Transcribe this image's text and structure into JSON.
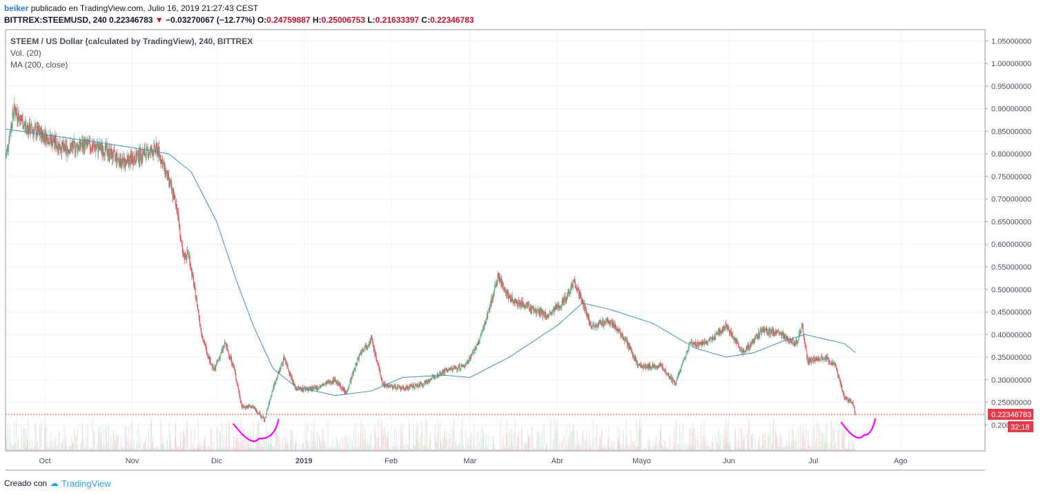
{
  "header": {
    "user": "beiker",
    "published_text": "publicado en TradingView.com, Julio 16, 2019 21:27:43 CEST",
    "symbol": "BITTREX:STEEMUSD, 240",
    "last": "0.22346783",
    "change": "−0.03270067 (−12.77%)",
    "open_label": "O:",
    "open": "0.24759887",
    "high_label": "H:",
    "high": "0.25006753",
    "low_label": "L:",
    "low": "0.21633397",
    "close_label": "C:",
    "close": "0.22346783",
    "down_icon": "triangle-down-icon"
  },
  "legend": {
    "title": "STEEM / US Dollar (calculated by TradingView), 240, BITTREX",
    "volume": "Vol. (20)",
    "ma": "MA (200, close)"
  },
  "footer": {
    "created_with": "Creado con",
    "brand": "TradingView",
    "logo_icon": "tradingview-logo-icon"
  },
  "colors": {
    "up": "#53b987",
    "down": "#eb4d5c",
    "ma": "#3d8eb9",
    "annotation": "#ff00ff",
    "last_price": "#e03c4a",
    "grid": "#eef1f6",
    "axis_text": "#4a4e59"
  },
  "chart_data": {
    "type": "candlestick",
    "symbol": "STEEMUSD",
    "exchange": "BITTREX",
    "interval": "240",
    "x_ticks": [
      "Oct",
      "Nov",
      "Dic",
      "2019",
      "Feb",
      "Mar",
      "Abr",
      "Mayo",
      "Jun",
      "Jul",
      "Ago"
    ],
    "y_ticks": [
      "1.05000000",
      "1.00000000",
      "0.95000000",
      "0.90000000",
      "0.85000000",
      "0.80000000",
      "0.75000000",
      "0.70000000",
      "0.65000000",
      "0.60000000",
      "0.55000000",
      "0.50000000",
      "0.45000000",
      "0.40000000",
      "0.35000000",
      "0.30000000",
      "0.25000000",
      "0.200"
    ],
    "ylim": [
      0.175,
      1.05
    ],
    "x_range": [
      "2018-09-17",
      "2019-08-31"
    ],
    "last_price_label": "0.22346783",
    "countdown_label": "32:18",
    "price_path": [
      [
        "2018-09-17",
        0.79
      ],
      [
        "2018-09-20",
        0.9
      ],
      [
        "2018-09-24",
        0.86
      ],
      [
        "2018-10-01",
        0.84
      ],
      [
        "2018-10-08",
        0.81
      ],
      [
        "2018-10-15",
        0.82
      ],
      [
        "2018-10-22",
        0.81
      ],
      [
        "2018-10-29",
        0.78
      ],
      [
        "2018-11-05",
        0.8
      ],
      [
        "2018-11-10",
        0.81
      ],
      [
        "2018-11-14",
        0.74
      ],
      [
        "2018-11-17",
        0.68
      ],
      [
        "2018-11-19",
        0.57
      ],
      [
        "2018-11-21",
        0.58
      ],
      [
        "2018-11-24",
        0.47
      ],
      [
        "2018-11-26",
        0.39
      ],
      [
        "2018-11-30",
        0.32
      ],
      [
        "2018-12-04",
        0.38
      ],
      [
        "2018-12-07",
        0.33
      ],
      [
        "2018-12-10",
        0.24
      ],
      [
        "2018-12-14",
        0.24
      ],
      [
        "2018-12-18",
        0.21
      ],
      [
        "2018-12-21",
        0.28
      ],
      [
        "2018-12-25",
        0.35
      ],
      [
        "2018-12-29",
        0.28
      ],
      [
        "2019-01-05",
        0.28
      ],
      [
        "2019-01-12",
        0.3
      ],
      [
        "2019-01-16",
        0.27
      ],
      [
        "2019-01-21",
        0.36
      ],
      [
        "2019-01-25",
        0.39
      ],
      [
        "2019-01-29",
        0.29
      ],
      [
        "2019-02-05",
        0.28
      ],
      [
        "2019-02-12",
        0.29
      ],
      [
        "2019-02-20",
        0.32
      ],
      [
        "2019-02-27",
        0.33
      ],
      [
        "2019-03-04",
        0.38
      ],
      [
        "2019-03-08",
        0.46
      ],
      [
        "2019-03-11",
        0.53
      ],
      [
        "2019-03-15",
        0.48
      ],
      [
        "2019-03-22",
        0.46
      ],
      [
        "2019-03-29",
        0.44
      ],
      [
        "2019-04-04",
        0.48
      ],
      [
        "2019-04-07",
        0.52
      ],
      [
        "2019-04-10",
        0.47
      ],
      [
        "2019-04-13",
        0.42
      ],
      [
        "2019-04-20",
        0.43
      ],
      [
        "2019-04-25",
        0.39
      ],
      [
        "2019-04-30",
        0.33
      ],
      [
        "2019-05-08",
        0.33
      ],
      [
        "2019-05-13",
        0.29
      ],
      [
        "2019-05-18",
        0.38
      ],
      [
        "2019-05-24",
        0.38
      ],
      [
        "2019-05-31",
        0.42
      ],
      [
        "2019-06-06",
        0.36
      ],
      [
        "2019-06-13",
        0.41
      ],
      [
        "2019-06-20",
        0.4
      ],
      [
        "2019-06-25",
        0.38
      ],
      [
        "2019-06-27",
        0.42
      ],
      [
        "2019-06-29",
        0.34
      ],
      [
        "2019-07-05",
        0.35
      ],
      [
        "2019-07-09",
        0.33
      ],
      [
        "2019-07-12",
        0.26
      ],
      [
        "2019-07-15",
        0.25
      ],
      [
        "2019-07-16",
        0.2235
      ]
    ],
    "ma200_path": [
      [
        "2018-09-17",
        0.855
      ],
      [
        "2018-10-15",
        0.83
      ],
      [
        "2018-11-05",
        0.81
      ],
      [
        "2018-11-14",
        0.8
      ],
      [
        "2018-11-22",
        0.76
      ],
      [
        "2018-12-01",
        0.65
      ],
      [
        "2018-12-08",
        0.52
      ],
      [
        "2018-12-14",
        0.42
      ],
      [
        "2018-12-21",
        0.325
      ],
      [
        "2018-12-29",
        0.285
      ],
      [
        "2019-01-12",
        0.265
      ],
      [
        "2019-01-25",
        0.275
      ],
      [
        "2019-02-05",
        0.305
      ],
      [
        "2019-02-20",
        0.31
      ],
      [
        "2019-03-01",
        0.305
      ],
      [
        "2019-03-15",
        0.35
      ],
      [
        "2019-04-01",
        0.42
      ],
      [
        "2019-04-10",
        0.47
      ],
      [
        "2019-04-20",
        0.455
      ],
      [
        "2019-05-05",
        0.425
      ],
      [
        "2019-05-20",
        0.37
      ],
      [
        "2019-05-31",
        0.35
      ],
      [
        "2019-06-10",
        0.36
      ],
      [
        "2019-06-20",
        0.385
      ],
      [
        "2019-06-28",
        0.4
      ],
      [
        "2019-07-05",
        0.39
      ],
      [
        "2019-07-12",
        0.38
      ],
      [
        "2019-07-16",
        0.36
      ]
    ],
    "annotations": [
      {
        "type": "curve",
        "from": [
          "2018-12-07",
          0.202
        ],
        "low": [
          "2018-12-16",
          0.17
        ],
        "to": [
          "2018-12-23",
          0.212
        ]
      },
      {
        "type": "curve",
        "from": [
          "2019-07-11",
          0.205
        ],
        "low": [
          "2019-07-19",
          0.178
        ],
        "to": [
          "2019-07-23",
          0.213
        ]
      }
    ]
  }
}
